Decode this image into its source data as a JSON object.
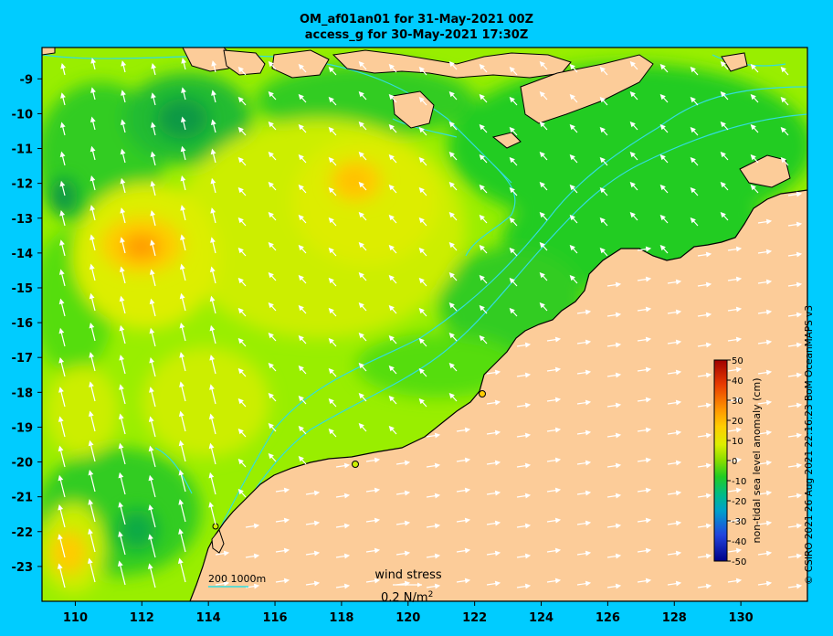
{
  "title": {
    "line1": "OM_af01an01 for 31-May-2021 00Z",
    "line2": "access_g for 30-May-2021 17:30Z"
  },
  "axes": {
    "lon_ticks": [
      "110",
      "112",
      "114",
      "116",
      "118",
      "120",
      "122",
      "124",
      "126",
      "128",
      "130"
    ],
    "lat_ticks": [
      "-9",
      "-10",
      "-11",
      "-12",
      "-13",
      "-14",
      "-15",
      "-16",
      "-17",
      "-18",
      "-19",
      "-20",
      "-21",
      "-22",
      "-23"
    ],
    "lon_range": [
      109,
      132
    ],
    "lat_range": [
      -24,
      -8.1
    ]
  },
  "colorbar": {
    "label": "non-tidal sea level anomaly (cm)",
    "ticks": [
      "50",
      "40",
      "30",
      "20",
      "10",
      "0",
      "-10",
      "-20",
      "-30",
      "-40",
      "-50"
    ],
    "range": [
      -50,
      50
    ]
  },
  "scale_bar": {
    "label": "200 1000m"
  },
  "wind_legend": {
    "title": "wind stress",
    "value_text": "0.2 N/m",
    "superscript": "2"
  },
  "credit": "© CSIRO 2021  26 Aug 2021 22:16:23 BoM OceanMAPS v3",
  "colors": {
    "background": "#00ccff",
    "land": "#fccc99",
    "sea_base": "#99ee00",
    "isobath": "#33dddd"
  }
}
